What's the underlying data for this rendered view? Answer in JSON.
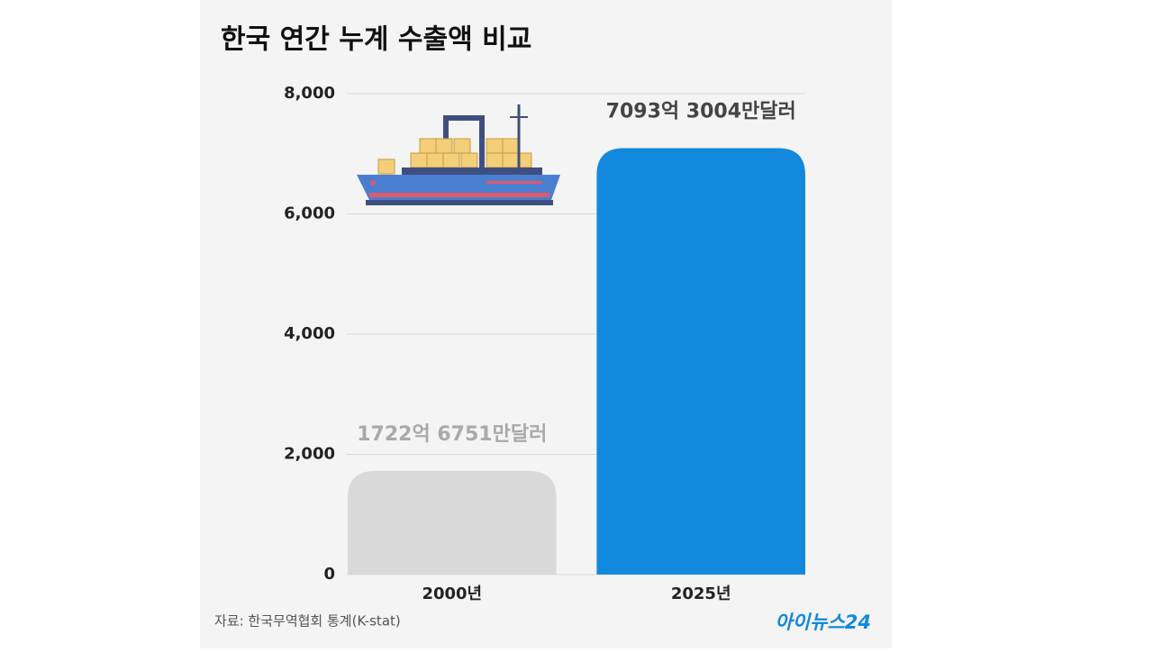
{
  "chart_data": {
    "type": "bar",
    "title": "한국 연간 누계 수출액 비교",
    "categories": [
      "2000년",
      "2025년"
    ],
    "values": [
      1722.6751,
      7093.3004
    ],
    "value_labels": [
      "1722억 6751만달러",
      "7093억 3004만달러"
    ],
    "colors": [
      "#d9d9d9",
      "#1289dc"
    ],
    "label_colors": [
      "#a9a9a9",
      "#444444"
    ],
    "ylim": [
      0,
      8000
    ],
    "yticks": [
      0,
      {
        "value": 2000,
        "label": "2,000"
      },
      {
        "value": 4000,
        "label": "4,000"
      },
      {
        "value": 6000,
        "label": "6,000"
      },
      {
        "value": 8000,
        "label": "8,000"
      }
    ],
    "grid": true,
    "source": "자료: 한국무역협회 통계(K-stat)",
    "logo": "아이뉴스24"
  }
}
